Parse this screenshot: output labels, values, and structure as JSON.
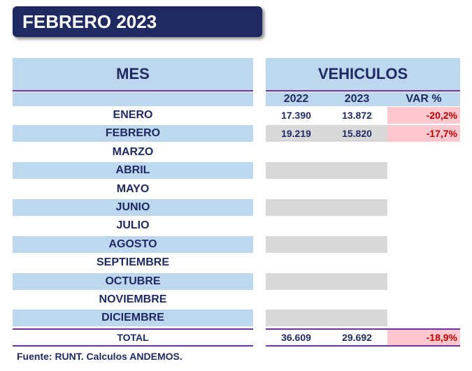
{
  "title": "FEBRERO 2023",
  "table": {
    "mes_header": "MES",
    "vehiculos_header": "VEHICULOS",
    "columns": [
      "2022",
      "2023",
      "VAR %"
    ],
    "rows": [
      {
        "mes": "ENERO",
        "v2022": "17.390",
        "v2023": "13.872",
        "var": "-20,2%"
      },
      {
        "mes": "FEBRERO",
        "v2022": "19.219",
        "v2023": "15.820",
        "var": "-17,7%"
      },
      {
        "mes": "MARZO",
        "v2022": "",
        "v2023": "",
        "var": ""
      },
      {
        "mes": "ABRIL",
        "v2022": "",
        "v2023": "",
        "var": ""
      },
      {
        "mes": "MAYO",
        "v2022": "",
        "v2023": "",
        "var": ""
      },
      {
        "mes": "JUNIO",
        "v2022": "",
        "v2023": "",
        "var": ""
      },
      {
        "mes": "JULIO",
        "v2022": "",
        "v2023": "",
        "var": ""
      },
      {
        "mes": "AGOSTO",
        "v2022": "",
        "v2023": "",
        "var": ""
      },
      {
        "mes": "SEPTIEMBRE",
        "v2022": "",
        "v2023": "",
        "var": ""
      },
      {
        "mes": "OCTUBRE",
        "v2022": "",
        "v2023": "",
        "var": ""
      },
      {
        "mes": "NOVIEMBRE",
        "v2022": "",
        "v2023": "",
        "var": ""
      },
      {
        "mes": "DICIEMBRE",
        "v2022": "",
        "v2023": "",
        "var": ""
      }
    ],
    "total": {
      "label": "TOTAL",
      "v2022": "36.609",
      "v2023": "29.692",
      "var": "-18,9%"
    }
  },
  "source": "Fuente: RUNT. Calculos ANDEMOS.",
  "colors": {
    "navy": "#1f2a63",
    "band_blue": "#bdd7ee",
    "gray": "#d9d9d9",
    "neg_fill": "#ffc7ce",
    "neg_text": "#c00000",
    "rule_purple": "#7030a0"
  }
}
